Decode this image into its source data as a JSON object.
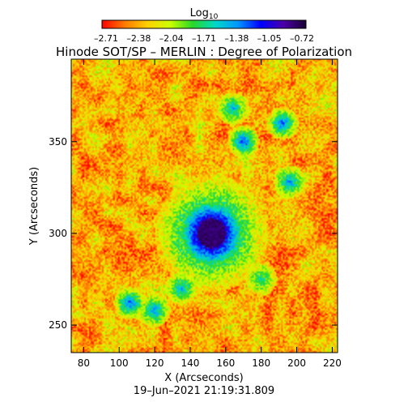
{
  "chart_data": {
    "type": "heatmap",
    "title": "Hinode SOT/SP – MERLIN : Degree of Polarization",
    "xlabel": "X (Arcseconds)",
    "ylabel": "Y (Arcseconds)",
    "timestamp": "19–Jun–2021 21:19:31.809",
    "xlim": [
      73,
      223
    ],
    "ylim": [
      235,
      395
    ],
    "x_ticks": [
      80,
      100,
      120,
      140,
      160,
      180,
      200,
      220
    ],
    "y_ticks": [
      250,
      300,
      350
    ],
    "colorbar": {
      "label_base": "Log",
      "label_sub": "10",
      "range": [
        -2.85,
        -0.55
      ],
      "tick_labels": [
        "–2.71",
        "–2.38",
        "–2.04",
        "–1.71",
        "–1.38",
        "–1.05",
        "–0.72"
      ],
      "colors": [
        "#ff0000",
        "#ff7a00",
        "#ffd000",
        "#ccff00",
        "#28d828",
        "#00d8c8",
        "#0096ff",
        "#0000ff",
        "#4b00a8",
        "#1a0030"
      ]
    },
    "spot": {
      "center_x": 152,
      "center_y": 300,
      "umbra_radius": 8,
      "penumbra_radius": 18,
      "umbra_value": -0.6,
      "background_value": -2.7
    },
    "plage": [
      {
        "x": 106,
        "y": 262,
        "value": -1.2
      },
      {
        "x": 120,
        "y": 258,
        "value": -1.3
      },
      {
        "x": 170,
        "y": 350,
        "value": -1.1
      },
      {
        "x": 192,
        "y": 360,
        "value": -1.2
      },
      {
        "x": 164,
        "y": 368,
        "value": -1.4
      },
      {
        "x": 196,
        "y": 328,
        "value": -1.3
      },
      {
        "x": 135,
        "y": 270,
        "value": -1.4
      },
      {
        "x": 180,
        "y": 275,
        "value": -1.6
      }
    ]
  }
}
